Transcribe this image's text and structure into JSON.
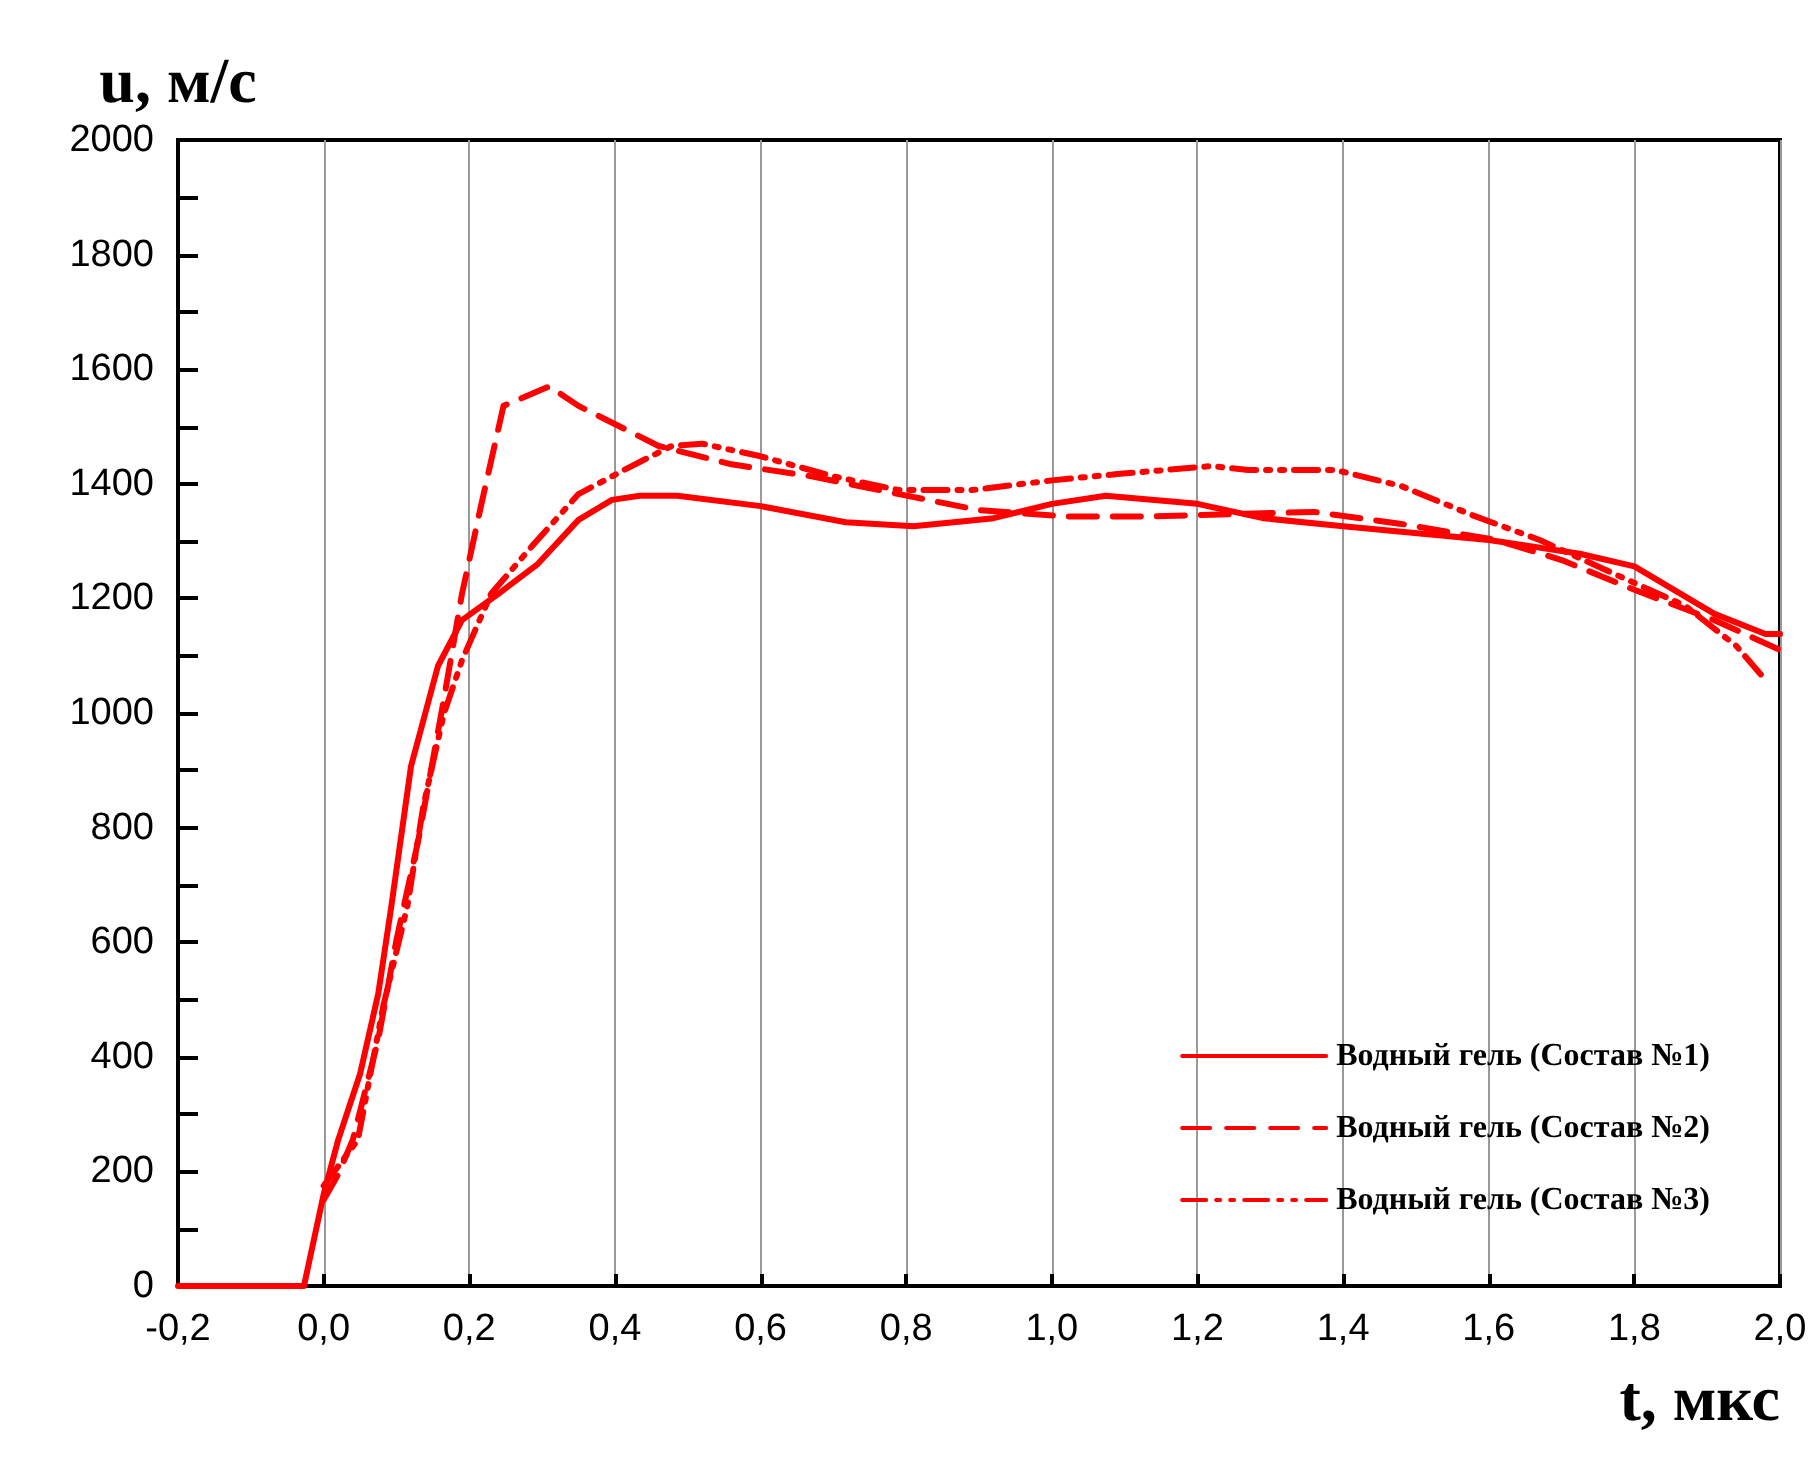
{
  "chart_data": {
    "type": "line",
    "xlabel": "t, мкс",
    "ylabel": "u, м/с",
    "xlim": [
      -0.2,
      2.0
    ],
    "xticks": [
      {
        "value": -0.2,
        "label": "-0,2"
      },
      {
        "value": 0,
        "label": "0,0"
      },
      {
        "value": 0.2,
        "label": "0,2"
      },
      {
        "value": 0.4,
        "label": "0,4"
      },
      {
        "value": 0.6,
        "label": "0,6"
      },
      {
        "value": 0.8,
        "label": "0,8"
      },
      {
        "value": 1.0,
        "label": "1,0"
      },
      {
        "value": 1.2,
        "label": "1,2"
      },
      {
        "value": 1.4,
        "label": "1,4"
      },
      {
        "value": 1.6,
        "label": "1,6"
      },
      {
        "value": 1.8,
        "label": "1,8"
      },
      {
        "value": 2.0,
        "label": "2,0"
      }
    ],
    "ylim": [
      0,
      2000
    ],
    "yticks": [
      0,
      {
        "value": 100,
        "label": null
      },
      200,
      {
        "value": 300,
        "label": null
      },
      400,
      {
        "value": 500,
        "label": null
      },
      600,
      {
        "value": 700,
        "label": null
      },
      800,
      {
        "value": 900,
        "label": null
      },
      1000,
      {
        "value": 1100,
        "label": null
      },
      1200,
      {
        "value": 1300,
        "label": null
      },
      1400,
      {
        "value": 1500,
        "label": null
      },
      1600,
      {
        "value": 1700,
        "label": null
      },
      1800,
      {
        "value": 1900,
        "label": null
      },
      2000
    ],
    "grid": "x",
    "legend": "bottom right",
    "marker": "none",
    "series": [
      {
        "name": "Водный гель (Состав №1)",
        "color": "#ff0000",
        "line_style": "solid",
        "x": [
          -0.2,
          -0.027,
          0,
          0.02,
          0.05,
          0.075,
          0.093,
          0.12,
          0.157,
          0.19,
          0.24,
          0.294,
          0.35,
          0.396,
          0.434,
          0.486,
          0.6,
          0.717,
          0.81,
          0.92,
          1.0,
          1.074,
          1.2,
          1.29,
          1.4,
          1.6,
          1.725,
          1.8,
          1.91,
          1.98,
          2.0
        ],
        "values": [
          0,
          0,
          160,
          255,
          370,
          510,
          663,
          907,
          1082,
          1162,
          1208,
          1260,
          1337,
          1372,
          1379,
          1379,
          1361,
          1333,
          1326,
          1340,
          1365,
          1379,
          1365,
          1340,
          1326,
          1302,
          1278,
          1256,
          1173,
          1138,
          1138
        ]
      },
      {
        "name": "Водный гель (Состав №2)",
        "color": "#ff0000",
        "line_style": "dashed",
        "x": [
          0,
          0.02,
          0.04,
          0.075,
          0.1,
          0.13,
          0.165,
          0.19,
          0.216,
          0.247,
          0.31,
          0.35,
          0.46,
          0.56,
          0.67,
          0.79,
          0.9,
          1.02,
          1.13,
          1.36,
          1.48,
          1.61,
          1.7,
          1.8,
          1.91,
          2.0
        ],
        "values": [
          150,
          195,
          255,
          430,
          604,
          778,
          1023,
          1208,
          1361,
          1536,
          1570,
          1536,
          1466,
          1434,
          1413,
          1382,
          1354,
          1343,
          1343,
          1351,
          1330,
          1302,
          1267,
          1215,
          1162,
          1110
        ]
      },
      {
        "name": "Водный гель (Состав №3)",
        "color": "#ff0000",
        "line_style": "dashdot",
        "x": [
          0,
          0.047,
          0.082,
          0.115,
          0.137,
          0.165,
          0.19,
          0.23,
          0.286,
          0.35,
          0.423,
          0.478,
          0.52,
          0.6,
          0.7,
          0.79,
          0.89,
          1.0,
          1.09,
          1.22,
          1.27,
          1.39,
          1.48,
          1.58,
          1.67,
          1.76,
          1.87,
          1.94,
          1.98
        ],
        "values": [
          175,
          255,
          489,
          663,
          838,
          998,
          1092,
          1208,
          1291,
          1382,
          1431,
          1466,
          1470,
          1448,
          1413,
          1389,
          1389,
          1406,
          1417,
          1431,
          1424,
          1424,
          1396,
          1344,
          1302,
          1250,
          1187,
          1117,
          1058
        ]
      }
    ]
  }
}
